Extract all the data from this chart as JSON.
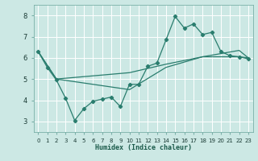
{
  "background_color": "#cce8e4",
  "grid_color": "#b0d8d2",
  "line_color": "#2a7d6e",
  "xlabel": "Humidex (Indice chaleur)",
  "xlim": [
    -0.5,
    23.5
  ],
  "ylim": [
    2.5,
    8.5
  ],
  "yticks": [
    3,
    4,
    5,
    6,
    7,
    8
  ],
  "xticks": [
    0,
    1,
    2,
    3,
    4,
    5,
    6,
    7,
    8,
    9,
    10,
    11,
    12,
    13,
    14,
    15,
    16,
    17,
    18,
    19,
    20,
    21,
    22,
    23
  ],
  "line1_x": [
    0,
    1,
    2,
    3,
    4,
    5,
    6,
    7,
    8,
    9,
    10,
    11,
    12,
    13,
    14,
    15,
    16,
    17,
    18,
    19,
    20,
    21,
    22,
    23
  ],
  "line1_y": [
    6.3,
    5.55,
    4.95,
    4.1,
    3.05,
    3.6,
    3.95,
    4.05,
    4.15,
    3.7,
    4.75,
    4.75,
    5.6,
    5.75,
    6.85,
    7.95,
    7.4,
    7.6,
    7.1,
    7.2,
    6.3,
    6.1,
    6.05,
    5.95
  ],
  "line2_x": [
    0,
    2,
    10,
    14,
    18,
    22,
    23
  ],
  "line2_y": [
    6.3,
    5.0,
    5.3,
    5.7,
    6.05,
    6.35,
    6.0
  ],
  "line3_x": [
    0,
    2,
    10,
    14,
    18,
    22,
    23
  ],
  "line3_y": [
    6.3,
    5.0,
    4.5,
    5.55,
    6.05,
    6.05,
    6.0
  ]
}
